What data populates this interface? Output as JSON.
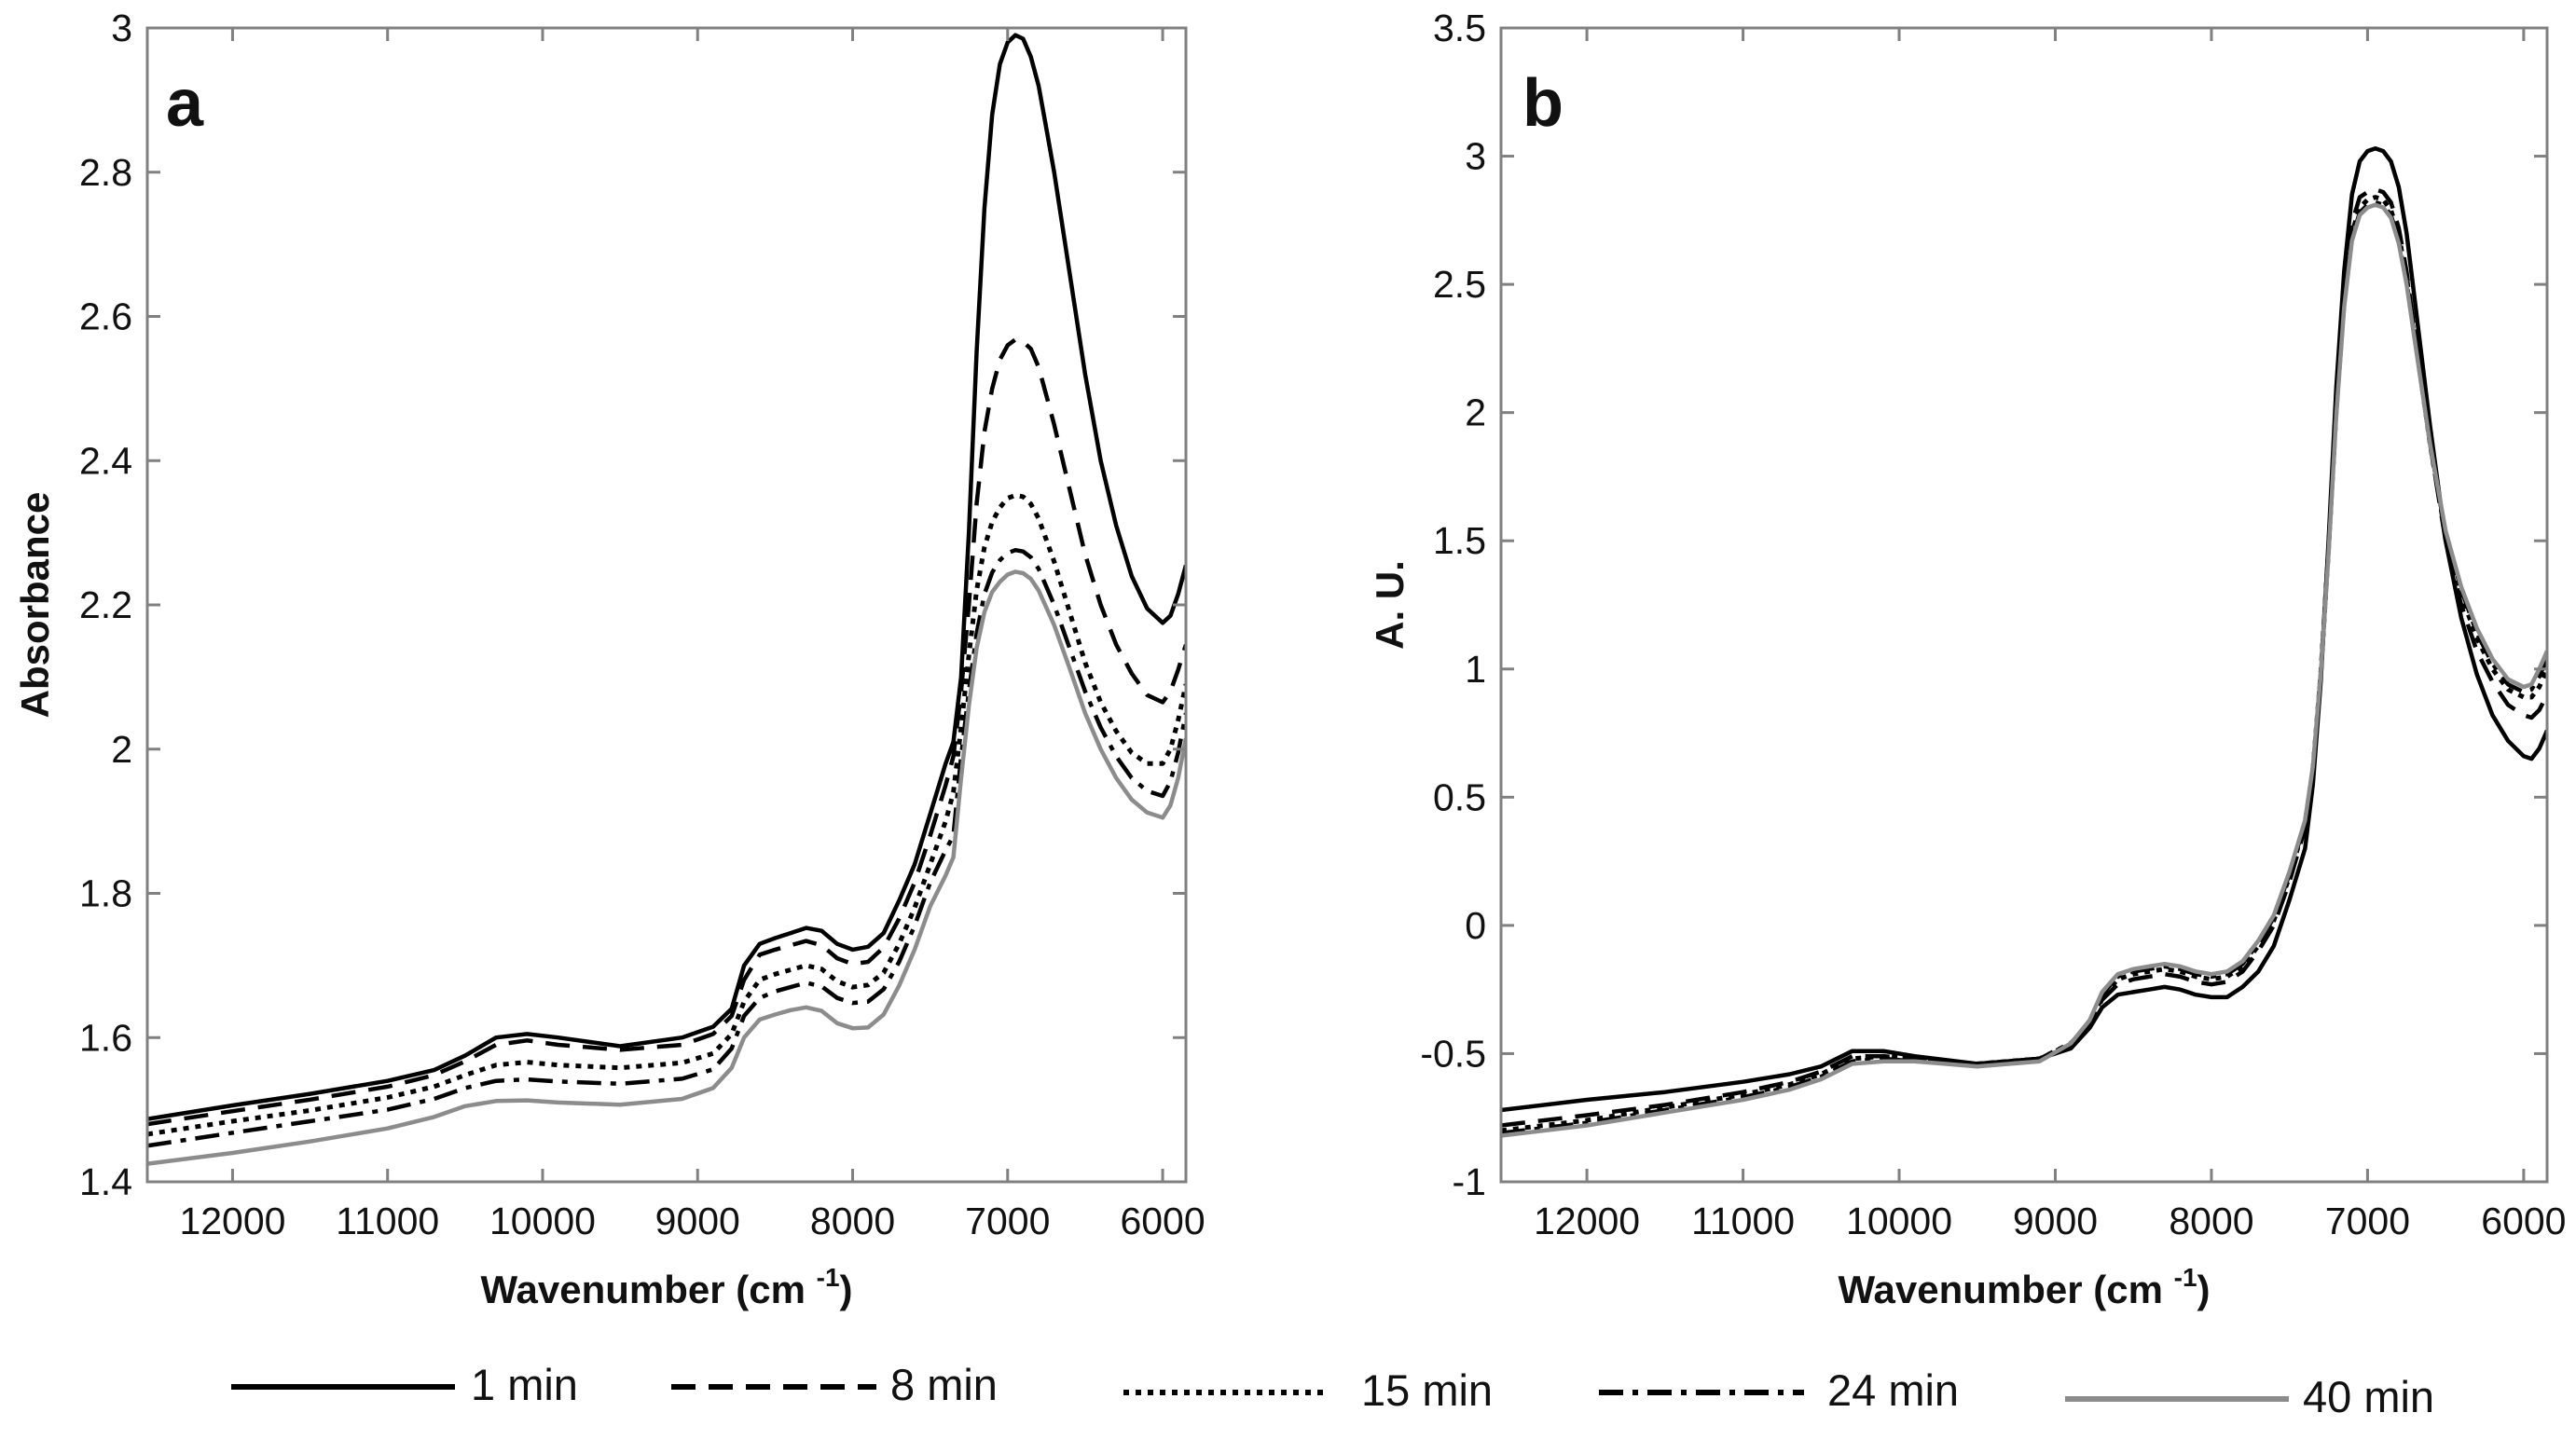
{
  "chart_data": [
    {
      "panel": "a",
      "type": "line",
      "title": "",
      "xlabel": "Wavenumber (cm",
      "xlabel_sup": "-1",
      "xlabel_close": ")",
      "ylabel": "Absorbance",
      "xlim": [
        12550,
        5850
      ],
      "ylim": [
        1.4,
        3.0
      ],
      "xticks": [
        12000,
        11000,
        10000,
        9000,
        8000,
        7000,
        6000
      ],
      "yticks": [
        1.4,
        1.6,
        1.8,
        2.0,
        2.2,
        2.4,
        2.6,
        2.8,
        3.0
      ],
      "ytick_labels": [
        "1.4",
        "1.6",
        "1.8",
        "2",
        "2.2",
        "2.4",
        "2.6",
        "2.8",
        "3"
      ],
      "grid": false,
      "x": [
        12550,
        12000,
        11500,
        11000,
        10700,
        10500,
        10300,
        10100,
        9900,
        9500,
        9100,
        8900,
        8780,
        8700,
        8600,
        8500,
        8400,
        8300,
        8200,
        8100,
        8000,
        7900,
        7800,
        7700,
        7600,
        7500,
        7400,
        7350,
        7300,
        7250,
        7200,
        7150,
        7100,
        7050,
        7000,
        6950,
        6900,
        6850,
        6800,
        6750,
        6700,
        6600,
        6500,
        6400,
        6300,
        6200,
        6100,
        6000,
        5950,
        5900,
        5850
      ],
      "series": [
        {
          "name": "1 min",
          "style": "solid",
          "color": "#000000",
          "values": [
            1.487,
            1.506,
            1.522,
            1.54,
            1.555,
            1.575,
            1.6,
            1.605,
            1.6,
            1.588,
            1.6,
            1.615,
            1.64,
            1.7,
            1.73,
            1.738,
            1.745,
            1.752,
            1.748,
            1.73,
            1.722,
            1.726,
            1.745,
            1.79,
            1.84,
            1.91,
            1.98,
            2.01,
            2.1,
            2.3,
            2.55,
            2.75,
            2.88,
            2.95,
            2.98,
            2.99,
            2.985,
            2.96,
            2.92,
            2.86,
            2.8,
            2.66,
            2.52,
            2.4,
            2.31,
            2.24,
            2.195,
            2.175,
            2.185,
            2.215,
            2.255
          ]
        },
        {
          "name": "8 min",
          "style": "dashed",
          "color": "#000000",
          "values": [
            1.48,
            1.498,
            1.514,
            1.532,
            1.548,
            1.567,
            1.59,
            1.596,
            1.59,
            1.583,
            1.59,
            1.605,
            1.63,
            1.68,
            1.715,
            1.722,
            1.728,
            1.734,
            1.728,
            1.71,
            1.702,
            1.705,
            1.725,
            1.765,
            1.815,
            1.88,
            1.95,
            1.99,
            2.08,
            2.2,
            2.34,
            2.44,
            2.5,
            2.54,
            2.56,
            2.568,
            2.565,
            2.555,
            2.53,
            2.49,
            2.45,
            2.36,
            2.27,
            2.2,
            2.145,
            2.105,
            2.075,
            2.065,
            2.08,
            2.11,
            2.145
          ]
        },
        {
          "name": "15 min",
          "style": "dotted",
          "color": "#000000",
          "values": [
            1.466,
            1.484,
            1.499,
            1.517,
            1.532,
            1.548,
            1.562,
            1.566,
            1.562,
            1.558,
            1.565,
            1.578,
            1.605,
            1.65,
            1.68,
            1.688,
            1.694,
            1.7,
            1.695,
            1.678,
            1.67,
            1.673,
            1.69,
            1.73,
            1.78,
            1.84,
            1.9,
            1.94,
            2.03,
            2.13,
            2.22,
            2.28,
            2.315,
            2.335,
            2.348,
            2.352,
            2.35,
            2.34,
            2.32,
            2.29,
            2.26,
            2.19,
            2.12,
            2.065,
            2.025,
            1.995,
            1.98,
            1.98,
            2.0,
            2.04,
            2.09
          ]
        },
        {
          "name": "24 min",
          "style": "dashdot",
          "color": "#000000",
          "values": [
            1.45,
            1.468,
            1.484,
            1.5,
            1.515,
            1.53,
            1.54,
            1.542,
            1.539,
            1.536,
            1.543,
            1.556,
            1.585,
            1.63,
            1.655,
            1.664,
            1.67,
            1.676,
            1.671,
            1.655,
            1.648,
            1.65,
            1.667,
            1.705,
            1.755,
            1.815,
            1.86,
            1.88,
            1.99,
            2.08,
            2.16,
            2.215,
            2.245,
            2.262,
            2.272,
            2.276,
            2.274,
            2.266,
            2.25,
            2.225,
            2.2,
            2.14,
            2.08,
            2.03,
            1.99,
            1.96,
            1.942,
            1.935,
            1.955,
            1.995,
            2.05
          ]
        },
        {
          "name": "40 min",
          "style": "solid",
          "color": "#8c8c8c",
          "values": [
            1.425,
            1.44,
            1.456,
            1.474,
            1.49,
            1.505,
            1.512,
            1.513,
            1.51,
            1.507,
            1.515,
            1.53,
            1.558,
            1.6,
            1.625,
            1.632,
            1.638,
            1.642,
            1.637,
            1.62,
            1.613,
            1.614,
            1.632,
            1.672,
            1.722,
            1.782,
            1.825,
            1.85,
            1.96,
            2.06,
            2.14,
            2.19,
            2.218,
            2.232,
            2.242,
            2.246,
            2.244,
            2.236,
            2.22,
            2.196,
            2.172,
            2.112,
            2.05,
            2.0,
            1.96,
            1.93,
            1.912,
            1.905,
            1.922,
            1.96,
            2.015
          ]
        }
      ]
    },
    {
      "panel": "b",
      "type": "line",
      "title": "",
      "xlabel": "Wavenumber (cm",
      "xlabel_sup": "-1",
      "xlabel_close": ")",
      "ylabel": "A. U.",
      "xlim": [
        12550,
        5850
      ],
      "ylim": [
        -1,
        3.5
      ],
      "xticks": [
        12000,
        11000,
        10000,
        9000,
        8000,
        7000,
        6000
      ],
      "yticks": [
        -1,
        -0.5,
        0,
        0.5,
        1,
        1.5,
        2,
        2.5,
        3,
        3.5
      ],
      "ytick_labels": [
        "-1",
        "-0.5",
        "0",
        "0.5",
        "1",
        "1.5",
        "2",
        "2.5",
        "3",
        "3.5"
      ],
      "grid": false,
      "x": [
        12550,
        12000,
        11500,
        11000,
        10700,
        10500,
        10300,
        10100,
        9900,
        9500,
        9100,
        8900,
        8780,
        8700,
        8600,
        8500,
        8400,
        8300,
        8200,
        8100,
        8000,
        7900,
        7800,
        7700,
        7600,
        7500,
        7400,
        7350,
        7300,
        7250,
        7200,
        7150,
        7100,
        7050,
        7000,
        6950,
        6900,
        6850,
        6800,
        6750,
        6700,
        6600,
        6500,
        6400,
        6300,
        6200,
        6100,
        6000,
        5950,
        5900,
        5850
      ],
      "series": [
        {
          "name": "1 min",
          "style": "solid",
          "color": "#000000",
          "values": [
            -0.72,
            -0.68,
            -0.65,
            -0.61,
            -0.58,
            -0.55,
            -0.49,
            -0.49,
            -0.51,
            -0.54,
            -0.52,
            -0.48,
            -0.4,
            -0.32,
            -0.27,
            -0.26,
            -0.25,
            -0.24,
            -0.25,
            -0.27,
            -0.28,
            -0.28,
            -0.24,
            -0.18,
            -0.08,
            0.1,
            0.3,
            0.55,
            0.95,
            1.5,
            2.1,
            2.55,
            2.85,
            2.98,
            3.02,
            3.03,
            3.02,
            2.98,
            2.88,
            2.7,
            2.45,
            1.95,
            1.5,
            1.2,
            0.98,
            0.82,
            0.72,
            0.66,
            0.65,
            0.69,
            0.76
          ]
        },
        {
          "name": "8 min",
          "style": "dashed",
          "color": "#000000",
          "values": [
            -0.78,
            -0.74,
            -0.7,
            -0.65,
            -0.61,
            -0.57,
            -0.51,
            -0.51,
            -0.52,
            -0.54,
            -0.52,
            -0.47,
            -0.39,
            -0.29,
            -0.23,
            -0.21,
            -0.2,
            -0.19,
            -0.2,
            -0.22,
            -0.23,
            -0.22,
            -0.18,
            -0.1,
            0.0,
            0.17,
            0.38,
            0.6,
            0.98,
            1.48,
            2.05,
            2.48,
            2.74,
            2.84,
            2.86,
            2.87,
            2.86,
            2.82,
            2.72,
            2.55,
            2.32,
            1.88,
            1.5,
            1.25,
            1.07,
            0.95,
            0.86,
            0.82,
            0.81,
            0.84,
            0.9
          ]
        },
        {
          "name": "15 min",
          "style": "dotted",
          "color": "#000000",
          "values": [
            -0.8,
            -0.76,
            -0.71,
            -0.66,
            -0.62,
            -0.58,
            -0.52,
            -0.51,
            -0.52,
            -0.54,
            -0.52,
            -0.46,
            -0.38,
            -0.28,
            -0.21,
            -0.19,
            -0.18,
            -0.17,
            -0.18,
            -0.2,
            -0.21,
            -0.2,
            -0.16,
            -0.08,
            0.02,
            0.19,
            0.4,
            0.61,
            0.98,
            1.47,
            2.02,
            2.44,
            2.7,
            2.8,
            2.83,
            2.84,
            2.83,
            2.79,
            2.69,
            2.53,
            2.31,
            1.88,
            1.52,
            1.29,
            1.12,
            1.0,
            0.92,
            0.89,
            0.89,
            0.93,
            1.0
          ]
        },
        {
          "name": "24 min",
          "style": "dashdot",
          "color": "#000000",
          "values": [
            -0.81,
            -0.77,
            -0.72,
            -0.67,
            -0.63,
            -0.59,
            -0.53,
            -0.52,
            -0.53,
            -0.54,
            -0.52,
            -0.46,
            -0.38,
            -0.27,
            -0.2,
            -0.18,
            -0.17,
            -0.16,
            -0.17,
            -0.19,
            -0.2,
            -0.19,
            -0.15,
            -0.07,
            0.03,
            0.2,
            0.4,
            0.61,
            0.98,
            1.46,
            2.0,
            2.42,
            2.68,
            2.78,
            2.81,
            2.82,
            2.81,
            2.77,
            2.67,
            2.51,
            2.3,
            1.88,
            1.53,
            1.31,
            1.14,
            1.02,
            0.94,
            0.91,
            0.92,
            0.97,
            1.04
          ]
        },
        {
          "name": "40 min",
          "style": "solid",
          "color": "#8c8c8c",
          "values": [
            -0.82,
            -0.78,
            -0.73,
            -0.68,
            -0.64,
            -0.6,
            -0.54,
            -0.53,
            -0.53,
            -0.55,
            -0.53,
            -0.46,
            -0.37,
            -0.26,
            -0.19,
            -0.17,
            -0.16,
            -0.15,
            -0.16,
            -0.18,
            -0.19,
            -0.18,
            -0.14,
            -0.06,
            0.04,
            0.21,
            0.41,
            0.62,
            0.98,
            1.45,
            1.99,
            2.41,
            2.67,
            2.77,
            2.8,
            2.81,
            2.8,
            2.76,
            2.66,
            2.5,
            2.29,
            1.88,
            1.54,
            1.32,
            1.16,
            1.04,
            0.96,
            0.93,
            0.94,
            1.0,
            1.07
          ]
        }
      ]
    }
  ],
  "legend": {
    "placement": "bottom",
    "entries": [
      {
        "label": "1 min",
        "style": "solid",
        "color": "#000000"
      },
      {
        "label": "8 min",
        "style": "dashed",
        "color": "#000000"
      },
      {
        "label": "15 min",
        "style": "dotted",
        "color": "#000000"
      },
      {
        "label": "24 min",
        "style": "dashdot",
        "color": "#000000"
      },
      {
        "label": "40 min",
        "style": "solid",
        "color": "#8c8c8c"
      }
    ]
  }
}
